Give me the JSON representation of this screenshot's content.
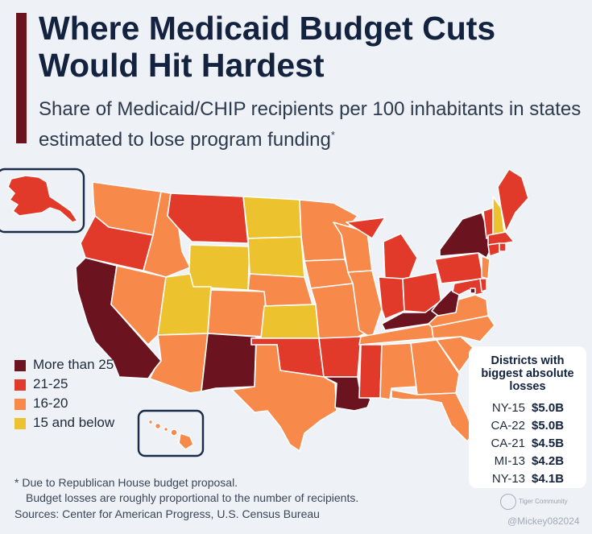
{
  "title": "Where Medicaid Budget Cuts Would Hit Hardest",
  "subtitle": "Share of Medicaid/CHIP recipients per 100 inhabitants in states estimated to lose program funding",
  "subtitle_marker": "*",
  "colors": {
    "more_than_25": "#6b1420",
    "21_25": "#e23a2a",
    "16_20": "#f7894a",
    "15_below": "#ecc22e",
    "accent": "#6b1420"
  },
  "legend": [
    {
      "key": "more_than_25",
      "label": "More than 25",
      "color": "#6b1420"
    },
    {
      "key": "21_25",
      "label": "21-25",
      "color": "#e23a2a"
    },
    {
      "key": "16_20",
      "label": "16-20",
      "color": "#f7894a"
    },
    {
      "key": "15_below",
      "label": "15 and below",
      "color": "#ecc22e"
    }
  ],
  "state_categories": {
    "WA": "16_20",
    "OR": "21_25",
    "CA": "more_than_25",
    "NV": "16_20",
    "ID": "16_20",
    "MT": "21_25",
    "WY": "15_below",
    "UT": "15_below",
    "AZ": "16_20",
    "CO": "16_20",
    "NM": "more_than_25",
    "ND": "15_below",
    "SD": "15_below",
    "NE": "16_20",
    "KS": "15_below",
    "OK": "21_25",
    "TX": "16_20",
    "MN": "16_20",
    "IA": "16_20",
    "MO": "16_20",
    "AR": "21_25",
    "LA": "more_than_25",
    "WI": "16_20",
    "IL": "16_20",
    "MS": "21_25",
    "MI": "21_25",
    "IN": "21_25",
    "KY": "more_than_25",
    "TN": "16_20",
    "AL": "16_20",
    "OH": "21_25",
    "WV": "more_than_25",
    "GA": "16_20",
    "FL": "16_20",
    "SC": "16_20",
    "NC": "16_20",
    "VA": "16_20",
    "PA": "21_25",
    "NY": "more_than_25",
    "VT": "21_25",
    "NH": "15_below",
    "ME": "21_25",
    "MA": "21_25",
    "CT": "21_25",
    "RI": "21_25",
    "NJ": "16_20",
    "DE": "21_25",
    "MD": "21_25",
    "DC": "more_than_25",
    "AK": "21_25",
    "HI": "16_20"
  },
  "districts": {
    "title": "Districts with biggest absolute losses",
    "rows": [
      {
        "district": "NY-15",
        "loss": "$5.0B"
      },
      {
        "district": "CA-22",
        "loss": "$5.0B"
      },
      {
        "district": "CA-21",
        "loss": "$4.5B"
      },
      {
        "district": "MI-13",
        "loss": "$4.2B"
      },
      {
        "district": "NY-13",
        "loss": "$4.1B"
      }
    ]
  },
  "footnote": {
    "line1": "* Due to Republican House budget proposal.",
    "line2": "Budget losses are roughly proportional to the number of recipients."
  },
  "sources": "Sources: Center for American Progress, U.S. Census Bureau",
  "watermark": {
    "logo_text": "Tiger Community",
    "handle": "@Mickey082024"
  }
}
